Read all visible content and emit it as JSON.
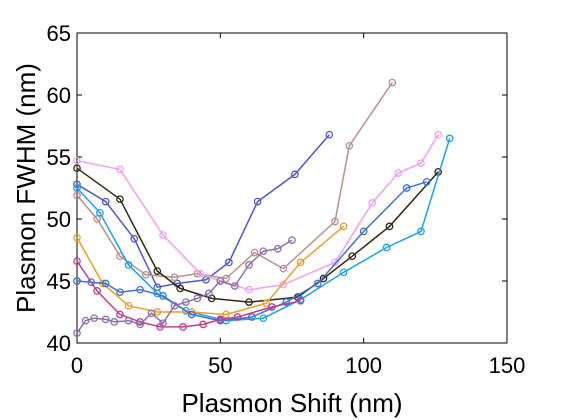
{
  "chart_data": {
    "type": "line",
    "title": "",
    "xlabel": "Plasmon Shift (nm)",
    "ylabel": "Plasmon FWHM (nm)",
    "xlim": [
      0,
      150
    ],
    "ylim": [
      40,
      65
    ],
    "xticks": [
      "0",
      "50",
      "100",
      "150"
    ],
    "yticks": [
      "40",
      "45",
      "50",
      "55",
      "60",
      "65"
    ],
    "grid": false,
    "legend": "none",
    "marker": "open-circle",
    "series": [
      {
        "color": "#5058c8",
        "points": [
          [
            0,
            52.8
          ],
          [
            10,
            51.4
          ],
          [
            20,
            48.4
          ],
          [
            28,
            44.5
          ],
          [
            35,
            44.8
          ],
          [
            45,
            45.1
          ],
          [
            53,
            46.5
          ],
          [
            63,
            51.4
          ],
          [
            76,
            53.6
          ],
          [
            88,
            56.8
          ]
        ]
      },
      {
        "color": "#b89090",
        "points": [
          [
            0,
            51.9
          ],
          [
            7,
            50.0
          ],
          [
            15,
            47.0
          ],
          [
            24,
            45.5
          ],
          [
            34,
            45.3
          ],
          [
            42,
            45.6
          ],
          [
            52,
            45.2
          ],
          [
            62,
            47.3
          ],
          [
            72,
            46.0
          ],
          [
            90,
            49.8
          ],
          [
            95,
            55.9
          ],
          [
            110,
            61.0
          ]
        ]
      },
      {
        "color": "#f0a0f0",
        "points": [
          [
            0,
            54.7
          ],
          [
            15,
            54.0
          ],
          [
            30,
            48.7
          ],
          [
            43,
            45.6
          ],
          [
            50,
            45.0
          ],
          [
            60,
            44.3
          ],
          [
            72,
            44.7
          ],
          [
            90,
            46.5
          ],
          [
            103,
            51.3
          ],
          [
            112,
            53.7
          ],
          [
            120,
            54.5
          ],
          [
            126,
            56.8
          ]
        ]
      },
      {
        "color": "#302810",
        "points": [
          [
            0,
            54.1
          ],
          [
            15,
            51.6
          ],
          [
            28,
            45.8
          ],
          [
            36,
            44.4
          ],
          [
            47,
            43.6
          ],
          [
            60,
            43.3
          ],
          [
            77,
            43.7
          ],
          [
            86,
            45.2
          ],
          [
            96,
            47.0
          ],
          [
            109,
            49.4
          ],
          [
            126,
            53.8
          ]
        ]
      },
      {
        "color": "#20a0e8",
        "points": [
          [
            0,
            52.5
          ],
          [
            8,
            50.5
          ],
          [
            18,
            46.3
          ],
          [
            28,
            44.0
          ],
          [
            38,
            42.6
          ],
          [
            52,
            41.8
          ],
          [
            65,
            42.0
          ],
          [
            78,
            43.5
          ],
          [
            93,
            45.7
          ],
          [
            108,
            47.7
          ],
          [
            120,
            49.0
          ],
          [
            130,
            56.5
          ]
        ]
      },
      {
        "color": "#e8a030",
        "points": [
          [
            0,
            48.5
          ],
          [
            9,
            44.8
          ],
          [
            18,
            43.0
          ],
          [
            28,
            42.5
          ],
          [
            40,
            42.5
          ],
          [
            52,
            42.3
          ],
          [
            66,
            43.2
          ],
          [
            78,
            46.5
          ],
          [
            93,
            49.4
          ]
        ]
      },
      {
        "color": "#4070d0",
        "points": [
          [
            0,
            45.0
          ],
          [
            5,
            44.9
          ],
          [
            10,
            44.8
          ],
          [
            15,
            44.1
          ],
          [
            22,
            44.3
          ],
          [
            30,
            43.8
          ],
          [
            40,
            42.3
          ],
          [
            50,
            41.8
          ],
          [
            61,
            42.1
          ],
          [
            73,
            43.3
          ],
          [
            84,
            44.8
          ],
          [
            100,
            49.0
          ],
          [
            115,
            52.5
          ],
          [
            122,
            53.0
          ]
        ]
      },
      {
        "color": "#c04090",
        "points": [
          [
            0,
            46.6
          ],
          [
            7,
            44.2
          ],
          [
            15,
            42.3
          ],
          [
            22,
            41.7
          ],
          [
            29,
            41.3
          ],
          [
            37,
            41.3
          ],
          [
            44,
            41.5
          ],
          [
            50,
            41.9
          ],
          [
            56,
            42.1
          ],
          [
            68,
            42.9
          ],
          [
            78,
            43.4
          ]
        ]
      },
      {
        "color": "#9070a8",
        "points": [
          [
            0,
            40.8
          ],
          [
            3,
            41.8
          ],
          [
            6,
            42.0
          ],
          [
            10,
            41.9
          ],
          [
            13,
            41.7
          ],
          [
            18,
            41.8
          ],
          [
            22,
            41.5
          ],
          [
            26,
            42.4
          ],
          [
            30,
            41.6
          ],
          [
            34,
            43.0
          ],
          [
            38,
            43.3
          ],
          [
            42,
            43.6
          ],
          [
            46,
            44.0
          ],
          [
            50,
            45.0
          ],
          [
            55,
            44.6
          ],
          [
            60,
            46.3
          ],
          [
            65,
            47.4
          ],
          [
            70,
            47.6
          ],
          [
            75,
            48.3
          ]
        ]
      }
    ]
  }
}
